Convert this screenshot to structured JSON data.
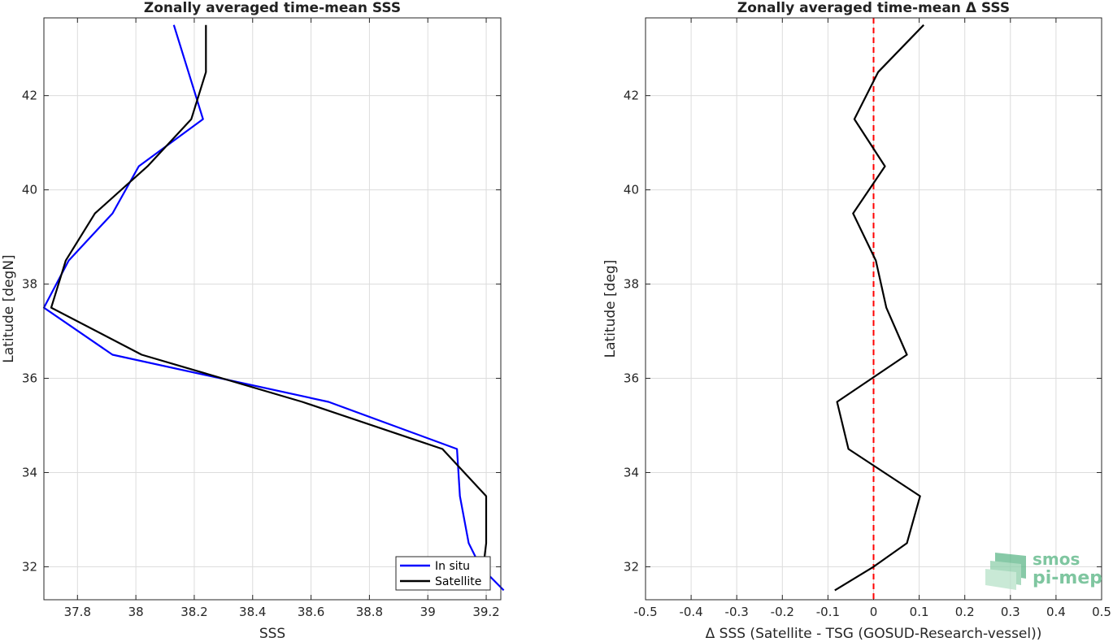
{
  "chart_data": [
    {
      "type": "line",
      "title": "Zonally averaged time-mean SSS",
      "xlabel": "SSS",
      "ylabel": "Latitude [degN]",
      "xlim": [
        37.685,
        39.25
      ],
      "ylim": [
        31.3,
        43.65
      ],
      "xticks": [
        37.8,
        38.0,
        38.2,
        38.4,
        38.6,
        38.8,
        39.0,
        39.2
      ],
      "xtick_labels": [
        "37.8",
        "38",
        "38.2",
        "38.4",
        "38.6",
        "38.8",
        "39",
        "39.2"
      ],
      "yticks": [
        32,
        34,
        36,
        38,
        40,
        42
      ],
      "ytick_labels": [
        "32",
        "34",
        "36",
        "38",
        "40",
        "42"
      ],
      "grid": true,
      "legend": "bottom-right",
      "series": [
        {
          "name": "In situ",
          "color": "#0000ff",
          "x": [
            39.26,
            39.18,
            39.14,
            39.11,
            39.1,
            38.66,
            37.92,
            37.685,
            37.77,
            37.92,
            38.01,
            38.23,
            38.18,
            38.13
          ],
          "y": [
            31.5,
            32.0,
            32.5,
            33.5,
            34.5,
            35.5,
            36.5,
            37.5,
            38.5,
            39.5,
            40.5,
            41.5,
            42.5,
            43.5
          ]
        },
        {
          "name": "Satellite",
          "color": "#000000",
          "x": [
            39.19,
            39.2,
            39.2,
            39.05,
            38.57,
            38.02,
            37.71,
            37.76,
            37.86,
            38.04,
            38.19,
            38.24,
            38.24
          ],
          "y": [
            32.0,
            32.5,
            33.5,
            34.5,
            35.5,
            36.5,
            37.5,
            38.5,
            39.5,
            40.5,
            41.5,
            42.5,
            43.5
          ]
        }
      ]
    },
    {
      "type": "line",
      "title": "Zonally averaged time-mean Δ SSS",
      "xlabel": "Δ SSS (Satellite - TSG (GOSUD-Research-vessel))",
      "ylabel": "Latitude [deg]",
      "xlim": [
        -0.5,
        0.5
      ],
      "ylim": [
        31.3,
        43.65
      ],
      "xticks": [
        -0.5,
        -0.4,
        -0.3,
        -0.2,
        -0.1,
        0,
        0.1,
        0.2,
        0.3,
        0.4,
        0.5
      ],
      "xtick_labels": [
        "-0.5",
        "-0.4",
        "-0.3",
        "-0.2",
        "-0.1",
        "0",
        "0.1",
        "0.2",
        "0.3",
        "0.4",
        "0.5"
      ],
      "yticks": [
        32,
        34,
        36,
        38,
        40,
        42
      ],
      "ytick_labels": [
        "32",
        "34",
        "36",
        "38",
        "40",
        "42"
      ],
      "grid": true,
      "reference_line": {
        "x": 0,
        "color": "#ff0000",
        "style": "dashed"
      },
      "series": [
        {
          "color": "#000000",
          "x": [
            -0.085,
            0.0,
            0.073,
            0.102,
            -0.055,
            -0.08,
            0.073,
            0.028,
            0.005,
            -0.045,
            0.025,
            -0.042,
            0.01,
            0.11
          ],
          "y": [
            31.5,
            32.0,
            32.5,
            33.5,
            34.5,
            35.5,
            36.5,
            37.5,
            38.5,
            39.5,
            40.5,
            41.5,
            42.5,
            43.5
          ]
        }
      ]
    }
  ],
  "logo": {
    "line1": "smos",
    "line2": "pi-mep",
    "color": "#7fc6a0"
  }
}
